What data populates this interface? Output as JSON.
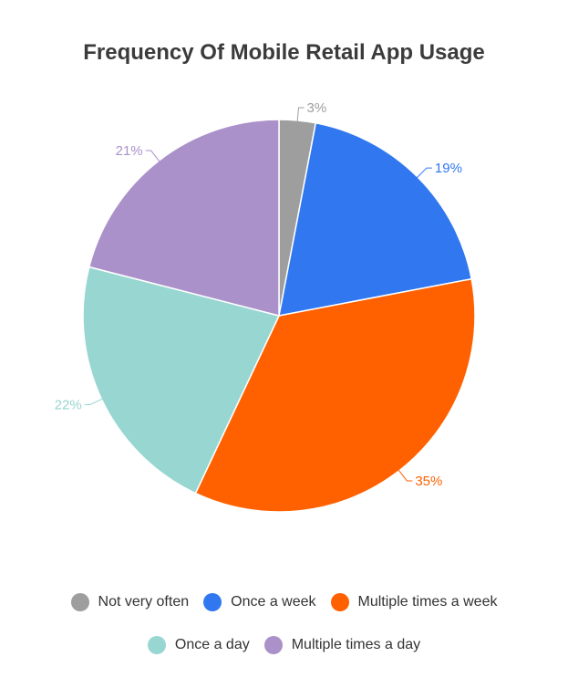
{
  "chart_data": {
    "type": "pie",
    "title": "Frequency Of Mobile Retail App Usage",
    "slices": [
      {
        "name": "Not very often",
        "value": 3,
        "label": "3%",
        "color": "#9e9e9e"
      },
      {
        "name": "Once a week",
        "value": 19,
        "label": "19%",
        "color": "#3178f0"
      },
      {
        "name": "Multiple times a week",
        "value": 35,
        "label": "35%",
        "color": "#ff6100"
      },
      {
        "name": "Once a day",
        "value": 22,
        "label": "22%",
        "color": "#98d6d2"
      },
      {
        "name": "Multiple times a day",
        "value": 21,
        "label": "21%",
        "color": "#ab91c9"
      }
    ],
    "legend_position": "bottom"
  },
  "legend": {
    "row1": [
      {
        "label": "Not very often",
        "color": "#9e9e9e"
      },
      {
        "label": "Once a week",
        "color": "#3178f0"
      },
      {
        "label": "Multiple times a week",
        "color": "#ff6100"
      }
    ],
    "row2": [
      {
        "label": "Once a day",
        "color": "#98d6d2"
      },
      {
        "label": "Multiple times a day",
        "color": "#ab91c9"
      }
    ]
  }
}
